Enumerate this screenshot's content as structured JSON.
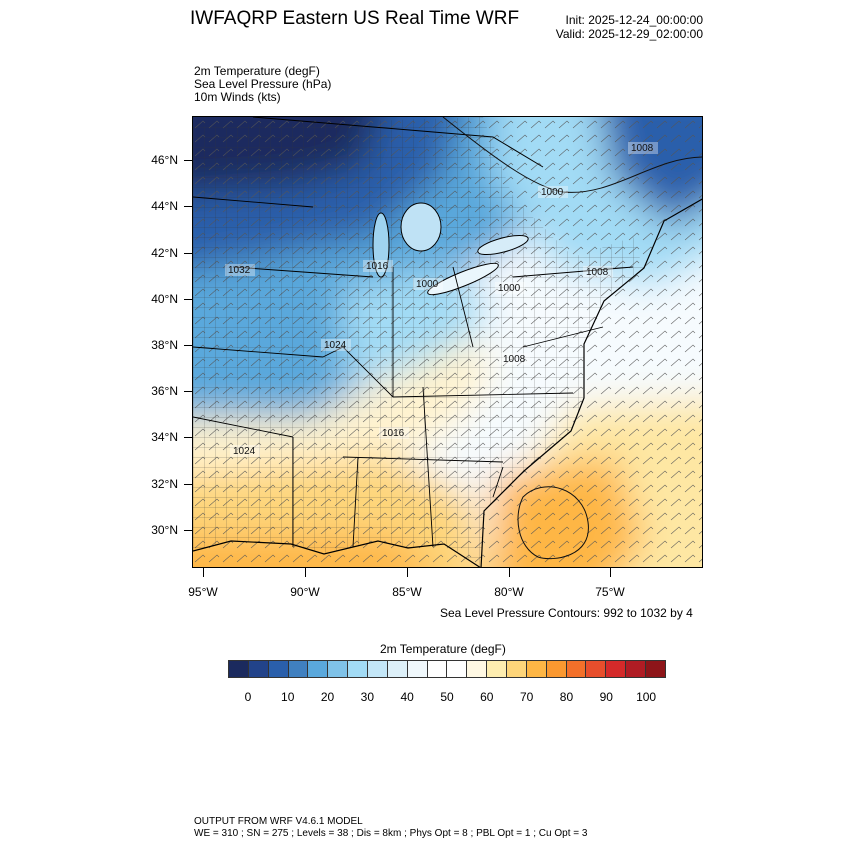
{
  "header": {
    "title": "IWFAQRP Eastern US Real Time WRF",
    "init": "Init: 2025-12-24_00:00:00",
    "valid": "Valid: 2025-12-29_02:00:00"
  },
  "fields": [
    "2m Temperature   (degF)",
    "Sea Level Pressure   (hPa)",
    "10m Winds   (kts)"
  ],
  "map": {
    "lat_labels": [
      "46°N",
      "44°N",
      "42°N",
      "40°N",
      "38°N",
      "36°N",
      "34°N",
      "32°N",
      "30°N"
    ],
    "lon_labels": [
      "95°W",
      "90°W",
      "85°W",
      "80°W",
      "75°W"
    ],
    "contour_labels": [
      "1008",
      "1000",
      "1032",
      "1016",
      "1000",
      "1000",
      "1008",
      "1024",
      "1008",
      "1016",
      "1024"
    ],
    "slp_note": "Sea Level Pressure Contours: 992 to 1032 by 4"
  },
  "colorbar": {
    "title": "2m Temperature  (degF)",
    "labels": [
      "0",
      "10",
      "20",
      "30",
      "40",
      "50",
      "60",
      "70",
      "80",
      "90",
      "100"
    ],
    "colors": [
      "#1b2a5e",
      "#22438a",
      "#2a5fab",
      "#4080c0",
      "#5aa8dc",
      "#7fc2e8",
      "#a2dbf5",
      "#c3e6f7",
      "#ddf0f9",
      "#f0f8fc",
      "#ffffff",
      "#ffffff",
      "#fff8e3",
      "#feedb0",
      "#fed57a",
      "#feb645",
      "#fa9830",
      "#f3702a",
      "#e74e2c",
      "#d42a2a",
      "#b01c24",
      "#8e1519"
    ]
  },
  "footer": {
    "line1": "OUTPUT FROM WRF V4.6.1 MODEL",
    "line2": "WE = 310 ; SN = 275 ; Levels = 38 ; Dis = 8km ; Phys Opt = 8 ; PBL Opt = 1 ; Cu Opt = 3"
  }
}
